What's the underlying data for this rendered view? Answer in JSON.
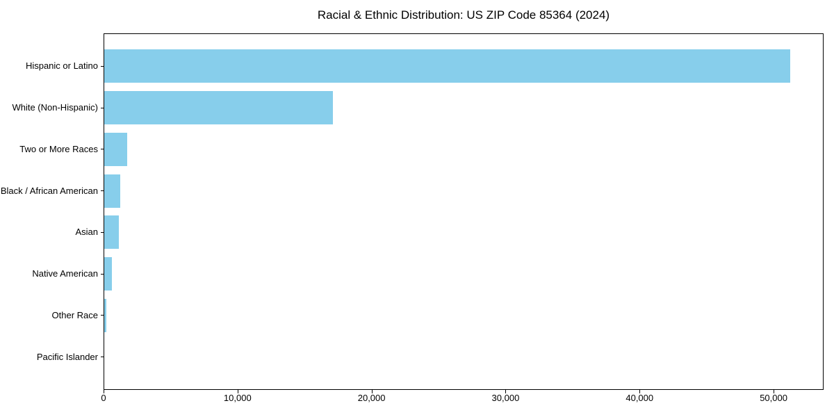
{
  "chart_data": {
    "type": "bar",
    "orientation": "horizontal",
    "title": "Racial & Ethnic Distribution: US ZIP Code 85364 (2024)",
    "categories": [
      "Hispanic or Latino",
      "White (Non-Hispanic)",
      "Two or More Races",
      "Black / African American",
      "Asian",
      "Native American",
      "Other Race",
      "Pacific Islander"
    ],
    "values": [
      51200,
      17050,
      1700,
      1200,
      1100,
      570,
      170,
      0
    ],
    "bar_color": "#87CEEB",
    "background_color": "#ffffff",
    "xlabel": "",
    "ylabel": "",
    "xlim": [
      0,
      53730
    ],
    "x_ticks": [
      0,
      10000,
      20000,
      30000,
      40000,
      50000
    ],
    "x_tick_labels": [
      "0",
      "10,000",
      "20,000",
      "30,000",
      "40,000",
      "50,000"
    ],
    "grid": false,
    "legend": null
  }
}
